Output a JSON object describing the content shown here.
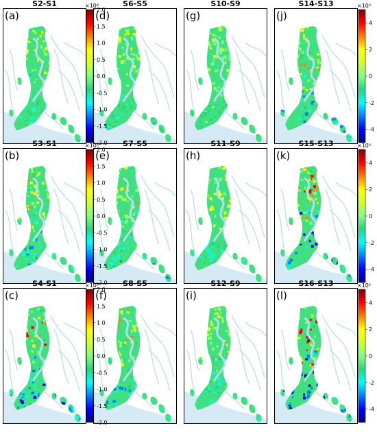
{
  "colors": {
    "sea": "#d6eaf6",
    "channels": "#b9dcef",
    "panel_border": "#000000",
    "background": "#ffffff",
    "jet_stops": [
      "#00007f",
      "#0000ff",
      "#007fff",
      "#00ffff",
      "#2ad47f",
      "#7fff7f",
      "#d4ff2a",
      "#ffff00",
      "#ff7f00",
      "#ff0000",
      "#7f0000"
    ],
    "land_base": "#40e080"
  },
  "panels": [
    {
      "letter": "(a)",
      "title": "S2-S1",
      "intensity": 0.45
    },
    {
      "letter": "(d)",
      "title": "S6-S5",
      "intensity": 0.35
    },
    {
      "letter": "(g)",
      "title": "S10-S9",
      "intensity": 0.2
    },
    {
      "letter": "(j)",
      "title": "S14-S13",
      "intensity": 0.7
    },
    {
      "letter": "(b)",
      "title": "S3-S1",
      "intensity": 0.65
    },
    {
      "letter": "(e)",
      "title": "S7-S5",
      "intensity": 0.55
    },
    {
      "letter": "(h)",
      "title": "S11-S9",
      "intensity": 0.45
    },
    {
      "letter": "(k)",
      "title": "S15-S13",
      "intensity": 0.9
    },
    {
      "letter": "(c)",
      "title": "S4-S1",
      "intensity": 0.8
    },
    {
      "letter": "(f)",
      "title": "S8-S5",
      "intensity": 0.6
    },
    {
      "letter": "(i)",
      "title": "S12-S9",
      "intensity": 0.5
    },
    {
      "letter": "(l)",
      "title": "S16-S13",
      "intensity": 1.0
    }
  ],
  "colorbars": {
    "left": {
      "multiplier": "×10⁴",
      "ticks": [
        "2.0",
        "1.5",
        "1.0",
        "0.5",
        "0.0",
        "-0.5",
        "-1.0",
        "-1.5",
        "-2.0"
      ],
      "range": [
        -2.0,
        2.0
      ]
    },
    "right": {
      "multiplier": "×10³",
      "ticks": [
        "4",
        "2",
        "0",
        "-2",
        "-4"
      ],
      "tick_values": [
        4,
        2,
        0,
        -2,
        -4
      ],
      "range": [
        -5,
        5
      ]
    }
  }
}
